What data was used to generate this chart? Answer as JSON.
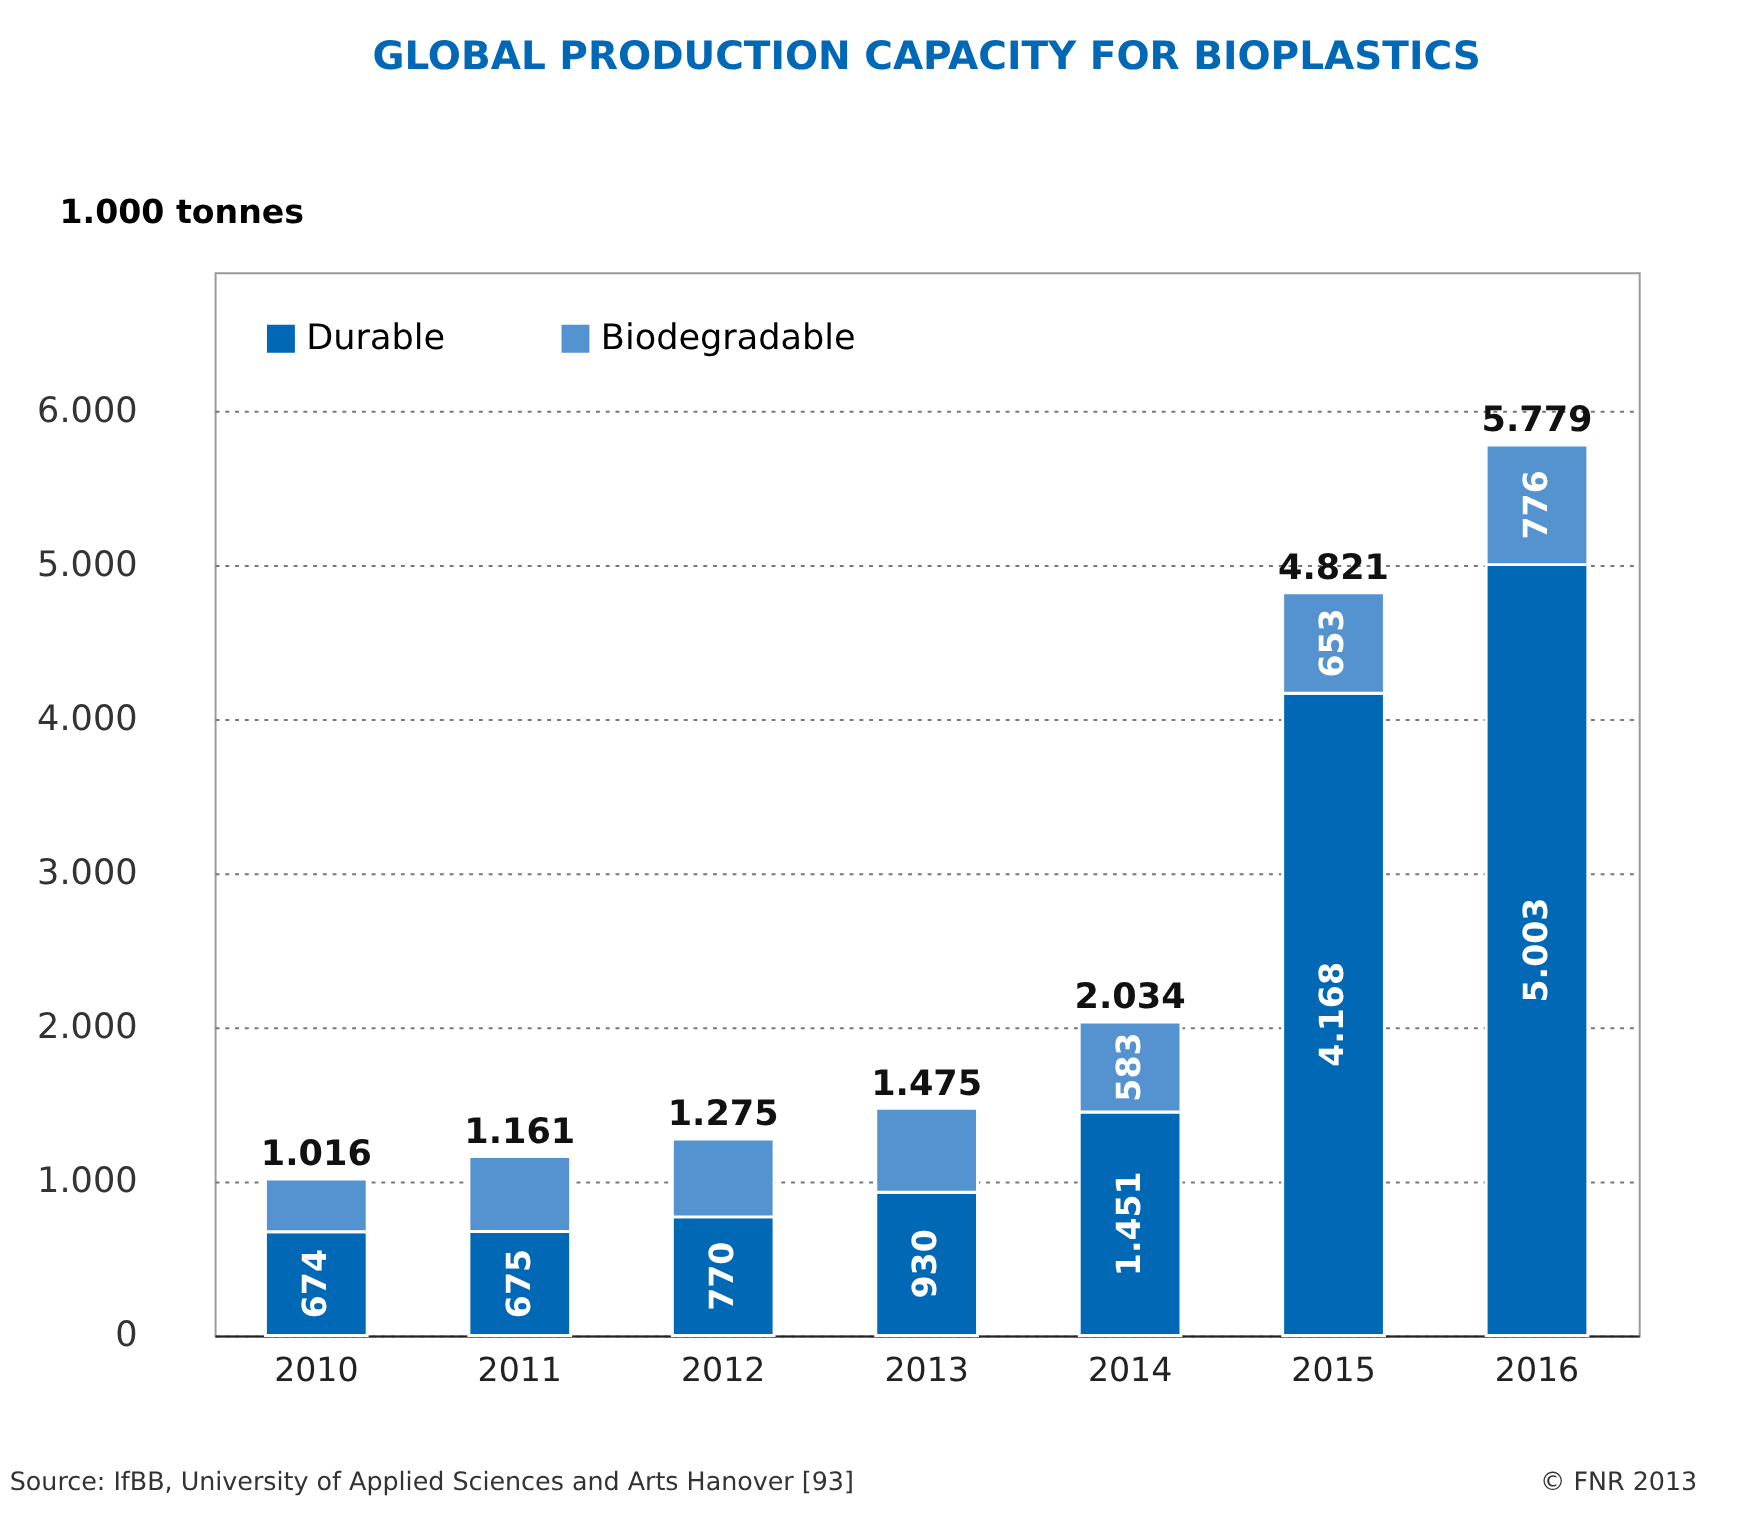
{
  "chart_data": {
    "type": "bar",
    "title": "GLOBAL PRODUCTION CAPACITY FOR BIOPLASTICS",
    "ylabel": "1.000 tonnes",
    "categories": [
      "2010",
      "2011",
      "2012",
      "2013",
      "2014",
      "2015",
      "2016"
    ],
    "stacked": true,
    "series": [
      {
        "name": "Durable",
        "color": "#0068b4",
        "values": [
          674,
          675,
          770,
          930,
          1451,
          4168,
          5003
        ],
        "value_labels": [
          "674",
          "675",
          "770",
          "930",
          "1.451",
          "4.168",
          "5.003"
        ]
      },
      {
        "name": "Biodegradable",
        "color": "#5592d0",
        "values": [
          342,
          486,
          505,
          545,
          583,
          653,
          776
        ],
        "value_labels": [
          null,
          null,
          null,
          null,
          "583",
          "653",
          "776"
        ]
      }
    ],
    "totals": [
      "1.016",
      "1.161",
      "1.275",
      "1.475",
      "2.034",
      "4.821",
      "5.779"
    ],
    "ylim": [
      0,
      6900
    ],
    "yticks": [
      0,
      {
        "value": 1000,
        "label": "1.000"
      },
      {
        "value": 2000,
        "label": "2.000"
      },
      {
        "value": 3000,
        "label": "3.000"
      },
      {
        "value": 4000,
        "label": "4.000"
      },
      {
        "value": 5000,
        "label": "5.000"
      },
      {
        "value": 6000,
        "label": "6.000"
      }
    ],
    "grid": "y",
    "legend": "top left",
    "annotations": [
      "Source: IfBB, University of Applied Sciences and Arts Hanover [93]",
      "© FNR 2013"
    ]
  }
}
